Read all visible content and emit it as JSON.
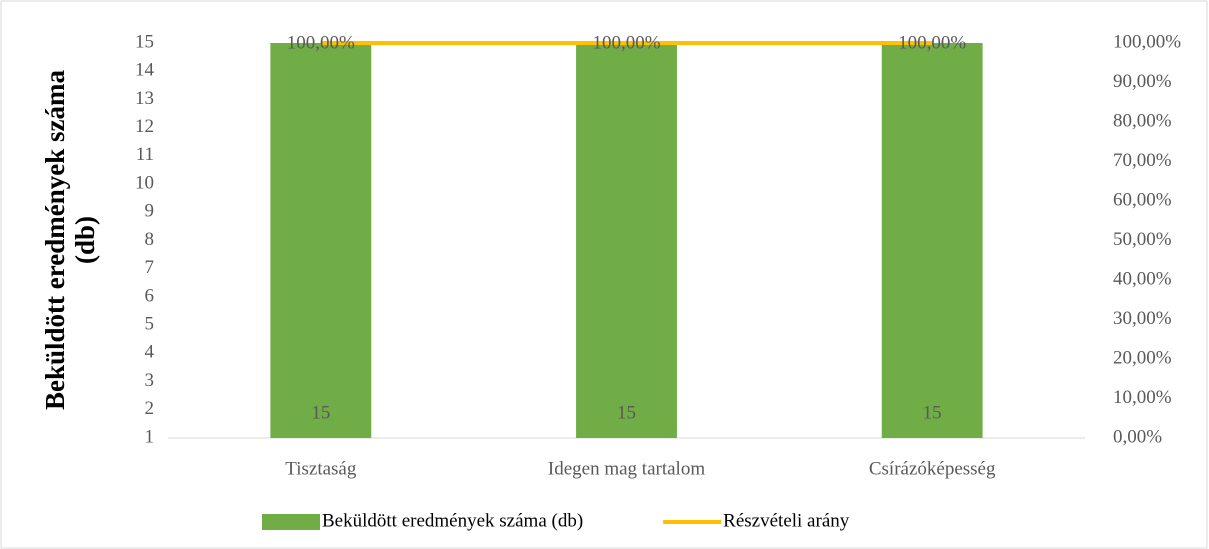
{
  "chart_data": {
    "type": "bar",
    "ylabel": "Beküldött eredmények száma (db)",
    "categories": [
      "Tisztaság",
      "Idegen mag tartalom",
      "Csírázóképesség"
    ],
    "series": [
      {
        "name": "Beküldött eredmények száma (db)",
        "type": "bar",
        "color": "#70ad47",
        "values": [
          15,
          15,
          15
        ]
      },
      {
        "name": "Részvételi arány",
        "type": "line",
        "axis": "y2",
        "color": "#ffc000",
        "values": [
          100,
          100,
          100
        ],
        "value_labels": [
          "100,00%",
          "100,00%",
          "100,00%"
        ]
      }
    ],
    "ylim": [
      1,
      15
    ],
    "yticks": [
      1,
      2,
      3,
      4,
      5,
      6,
      7,
      8,
      9,
      10,
      11,
      12,
      13,
      14,
      15
    ],
    "y2lim": [
      0,
      100
    ],
    "y2ticks": [
      {
        "value": 0,
        "label": "0,00%"
      },
      {
        "value": 10,
        "label": "10,00%"
      },
      {
        "value": 20,
        "label": "20,00%"
      },
      {
        "value": 30,
        "label": "30,00%"
      },
      {
        "value": 40,
        "label": "40,00%"
      },
      {
        "value": 50,
        "label": "50,00%"
      },
      {
        "value": 60,
        "label": "60,00%"
      },
      {
        "value": 70,
        "label": "70,00%"
      },
      {
        "value": 80,
        "label": "80,00%"
      },
      {
        "value": 90,
        "label": "90,00%"
      },
      {
        "value": 100,
        "label": "100,00%"
      }
    ],
    "legend": "bottom"
  }
}
